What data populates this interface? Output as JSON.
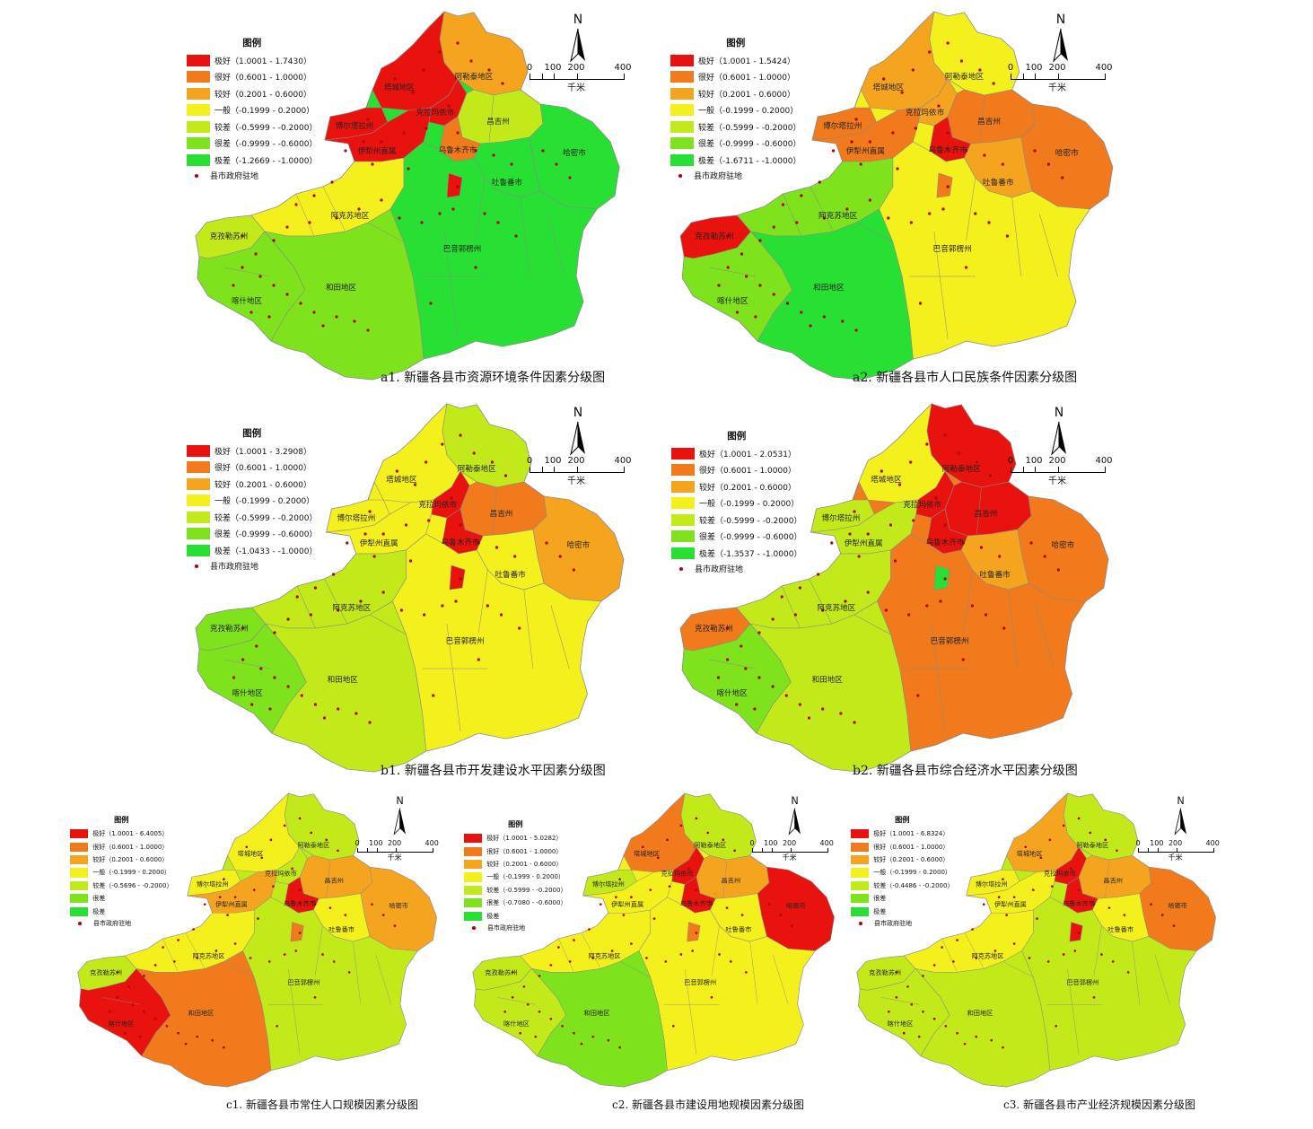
{
  "palette": {
    "cls1": "#e8120e",
    "cls2": "#f07a1c",
    "cls3": "#f5a41f",
    "cls4": "#f4f01e",
    "cls5": "#c2ea1a",
    "cls6": "#7ee21c",
    "cls7": "#28e034",
    "seat_dot": "#b0000a"
  },
  "scale_bar": {
    "ticks": [
      "0",
      "100",
      "200",
      "400"
    ],
    "unit": "千米"
  },
  "north_arrow": {
    "letter": "N",
    "icon": "north-arrow-icon"
  },
  "legend_common": {
    "title": "图例",
    "seat_label": "县市政府驻地",
    "seat_icon": "dot-icon"
  },
  "map_labels": {
    "altay": "阿勒泰地区",
    "tacheng": "塔城地区",
    "karamay": "克拉玛依市",
    "bortala": "博尔塔拉州",
    "ili": "伊犁州直属",
    "changji": "昌吉州",
    "hami": "哈密市",
    "turpan": "吐鲁番市",
    "kizilsu": "克孜勒苏州",
    "aksu": "阿克苏地区",
    "bayingol": "巴音郭楞州",
    "kashgar": "喀什地区",
    "hotan": "和田地区",
    "urumqi": "乌鲁木齐市"
  },
  "panels": [
    {
      "id": "a1",
      "caption": "a1. 新疆各县市资源环境条件因素分级图",
      "legend": [
        {
          "label": "极好（1.0001 - 1.7430）",
          "color_key": "cls1"
        },
        {
          "label": "很好（0.6001 - 1.0000）",
          "color_key": "cls2"
        },
        {
          "label": "较好（0.2001 - 0.6000）",
          "color_key": "cls3"
        },
        {
          "label": "一般（-0.1999 - 0.2000）",
          "color_key": "cls4"
        },
        {
          "label": "较差（-0.5999 - -0.2000）",
          "color_key": "cls5"
        },
        {
          "label": "很差（-0.9999 - -0.6000）",
          "color_key": "cls6"
        },
        {
          "label": "极差（-1.2669 - -1.0000）",
          "color_key": "cls7"
        }
      ],
      "regions": {
        "altay": "cls3",
        "tacheng": "cls1",
        "karamay": "cls1",
        "bortala": "cls1",
        "ili": "cls1",
        "changji": "cls5",
        "urumqi": "cls2",
        "hami": "cls7",
        "turpan": "cls7",
        "kizilsu": "cls5",
        "kashgar": "cls6",
        "aksu": "cls4",
        "bayingol": "cls7",
        "hotan": "cls6",
        "extra": "cls1"
      }
    },
    {
      "id": "a2",
      "caption": "a2. 新疆各县市人口民族条件因素分级图",
      "legend": [
        {
          "label": "极好（1.0001 - 1.5424）",
          "color_key": "cls1"
        },
        {
          "label": "很好（0.6001 - 1.0000）",
          "color_key": "cls2"
        },
        {
          "label": "较好（0.2001 - 0.6000）",
          "color_key": "cls3"
        },
        {
          "label": "一般（-0.1999 - 0.2000）",
          "color_key": "cls4"
        },
        {
          "label": "较差（-0.5999 - -0.2000）",
          "color_key": "cls5"
        },
        {
          "label": "很差（-0.9999 - -0.6000）",
          "color_key": "cls6"
        },
        {
          "label": "极差（-1.6711 - -1.0000）",
          "color_key": "cls7"
        }
      ],
      "regions": {
        "altay": "cls4",
        "tacheng": "cls3",
        "karamay": "cls3",
        "bortala": "cls2",
        "ili": "cls2",
        "changji": "cls2",
        "urumqi": "cls1",
        "hami": "cls2",
        "turpan": "cls3",
        "kizilsu": "cls1",
        "kashgar": "cls6",
        "aksu": "cls6",
        "bayingol": "cls4",
        "hotan": "cls7",
        "extra": "cls2"
      }
    },
    {
      "id": "b1",
      "caption": "b1. 新疆各县市开发建设水平因素分级图",
      "legend": [
        {
          "label": "极好（1.0001 - 3.2908）",
          "color_key": "cls1"
        },
        {
          "label": "很好（0.6001 - 1.0000）",
          "color_key": "cls2"
        },
        {
          "label": "较好（0.2001 - 0.6000）",
          "color_key": "cls3"
        },
        {
          "label": "一般（-0.1999 - 0.2000）",
          "color_key": "cls4"
        },
        {
          "label": "较差（-0.5999 - -0.2000）",
          "color_key": "cls5"
        },
        {
          "label": "很差（-0.9999 - -0.6000）",
          "color_key": "cls6"
        },
        {
          "label": "极差（-1.0433 - -1.0000）",
          "color_key": "cls7"
        }
      ],
      "regions": {
        "altay": "cls5",
        "tacheng": "cls4",
        "karamay": "cls1",
        "bortala": "cls4",
        "ili": "cls4",
        "changji": "cls2",
        "urumqi": "cls1",
        "hami": "cls3",
        "turpan": "cls4",
        "kizilsu": "cls6",
        "kashgar": "cls6",
        "aksu": "cls5",
        "bayingol": "cls4",
        "hotan": "cls5",
        "extra": "cls1"
      }
    },
    {
      "id": "b2",
      "caption": "b2. 新疆各县市综合经济水平因素分级图",
      "legend": [
        {
          "label": "极好（1.0001 - 2.0531）",
          "color_key": "cls1"
        },
        {
          "label": "很好（0.6001 - 1.0000）",
          "color_key": "cls2"
        },
        {
          "label": "较好（0.2001 - 0.6000）",
          "color_key": "cls3"
        },
        {
          "label": "一般（-0.1999 - 0.2000）",
          "color_key": "cls4"
        },
        {
          "label": "较差（-0.5999 - -0.2000）",
          "color_key": "cls5"
        },
        {
          "label": "很差（-0.9999 - -0.6000）",
          "color_key": "cls6"
        },
        {
          "label": "极差（-1.3537 - -1.0000）",
          "color_key": "cls7"
        }
      ],
      "regions": {
        "altay": "cls1",
        "tacheng": "cls4",
        "karamay": "cls1",
        "bortala": "cls5",
        "ili": "cls5",
        "changji": "cls1",
        "urumqi": "cls1",
        "hami": "cls2",
        "turpan": "cls3",
        "kizilsu": "cls2",
        "kashgar": "cls6",
        "aksu": "cls5",
        "bayingol": "cls2",
        "hotan": "cls5",
        "extra": "cls7"
      }
    },
    {
      "id": "c1",
      "caption": "c1. 新疆各县市常住人口规模因素分级图",
      "legend": [
        {
          "label": "极好（1.0001 - 6.4005）",
          "color_key": "cls1"
        },
        {
          "label": "很好（0.6001 - 1.0000）",
          "color_key": "cls2"
        },
        {
          "label": "较好（0.2001 - 0.6000）",
          "color_key": "cls3"
        },
        {
          "label": "一般（-0.1999 - 0.2000）",
          "color_key": "cls4"
        },
        {
          "label": "较差（-0.5696 - -0.2000）",
          "color_key": "cls5"
        },
        {
          "label": "很差",
          "color_key": "cls6"
        },
        {
          "label": "极差",
          "color_key": "cls7"
        }
      ],
      "regions": {
        "altay": "cls5",
        "tacheng": "cls4",
        "karamay": "cls5",
        "bortala": "cls4",
        "ili": "cls3",
        "changji": "cls3",
        "urumqi": "cls1",
        "hami": "cls3",
        "turpan": "cls4",
        "kizilsu": "cls5",
        "kashgar": "cls1",
        "aksu": "cls4",
        "bayingol": "cls5",
        "hotan": "cls2",
        "extra": "cls2"
      }
    },
    {
      "id": "c2",
      "caption": "c2. 新疆各县市建设用地规模因素分级图",
      "legend": [
        {
          "label": "极好（1.0001 - 5.0282）",
          "color_key": "cls1"
        },
        {
          "label": "很好（0.6001 - 1.0000）",
          "color_key": "cls2"
        },
        {
          "label": "较好（0.2001 - 0.6000）",
          "color_key": "cls3"
        },
        {
          "label": "一般（-0.1999 - 0.2000）",
          "color_key": "cls4"
        },
        {
          "label": "较差（-0.5999 - -0.2000）",
          "color_key": "cls5"
        },
        {
          "label": "很差（-0.7080 - -0.6000）",
          "color_key": "cls6"
        },
        {
          "label": "极差",
          "color_key": "cls7"
        }
      ],
      "regions": {
        "altay": "cls5",
        "tacheng": "cls2",
        "karamay": "cls1",
        "bortala": "cls5",
        "ili": "cls4",
        "changji": "cls3",
        "urumqi": "cls1",
        "hami": "cls1",
        "turpan": "cls4",
        "kizilsu": "cls5",
        "kashgar": "cls5",
        "aksu": "cls4",
        "bayingol": "cls4",
        "hotan": "cls6",
        "extra": "cls2"
      }
    },
    {
      "id": "c3",
      "caption": "c3. 新疆各县市产业经济规模因素分级图",
      "legend": [
        {
          "label": "极好（1.0001 - 6.8324）",
          "color_key": "cls1"
        },
        {
          "label": "很好（0.6001 - 1.0000）",
          "color_key": "cls2"
        },
        {
          "label": "较好（0.2001 - 0.6000）",
          "color_key": "cls3"
        },
        {
          "label": "一般（-0.1999 - 0.2000）",
          "color_key": "cls4"
        },
        {
          "label": "较差（-0.4486 - -0.2000）",
          "color_key": "cls5"
        },
        {
          "label": "很差",
          "color_key": "cls6"
        },
        {
          "label": "极差",
          "color_key": "cls7"
        }
      ],
      "regions": {
        "altay": "cls5",
        "tacheng": "cls3",
        "karamay": "cls1",
        "bortala": "cls4",
        "ili": "cls4",
        "changji": "cls3",
        "urumqi": "cls1",
        "hami": "cls2",
        "turpan": "cls4",
        "kizilsu": "cls5",
        "kashgar": "cls5",
        "aksu": "cls4",
        "bayingol": "cls5",
        "hotan": "cls5",
        "extra": "cls1"
      }
    }
  ]
}
